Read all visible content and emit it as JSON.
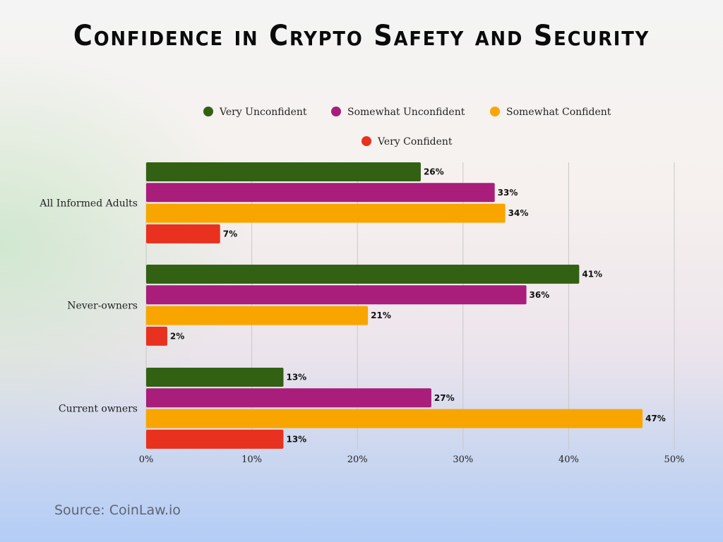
{
  "chart_data": {
    "type": "bar",
    "orientation": "horizontal",
    "title": "Confidence in Crypto Safety and Security",
    "categories": [
      "All Informed Adults",
      "Never-owners",
      "Current owners"
    ],
    "series": [
      {
        "name": "Very Unconfident",
        "color": "#336114",
        "values": [
          26,
          41,
          13
        ]
      },
      {
        "name": "Somewhat Unconfident",
        "color": "#a81e7a",
        "values": [
          33,
          36,
          27
        ]
      },
      {
        "name": "Somewhat Confident",
        "color": "#f9a500",
        "values": [
          34,
          21,
          47
        ]
      },
      {
        "name": "Very Confident",
        "color": "#e8311f",
        "values": [
          7,
          2,
          13
        ]
      }
    ],
    "xlim": [
      0,
      50
    ],
    "xticks": [
      "0%",
      "10%",
      "20%",
      "30%",
      "40%",
      "50%"
    ],
    "value_suffix": "%",
    "grid": true,
    "legend_position": "top"
  },
  "source": "Source: CoinLaw.io"
}
